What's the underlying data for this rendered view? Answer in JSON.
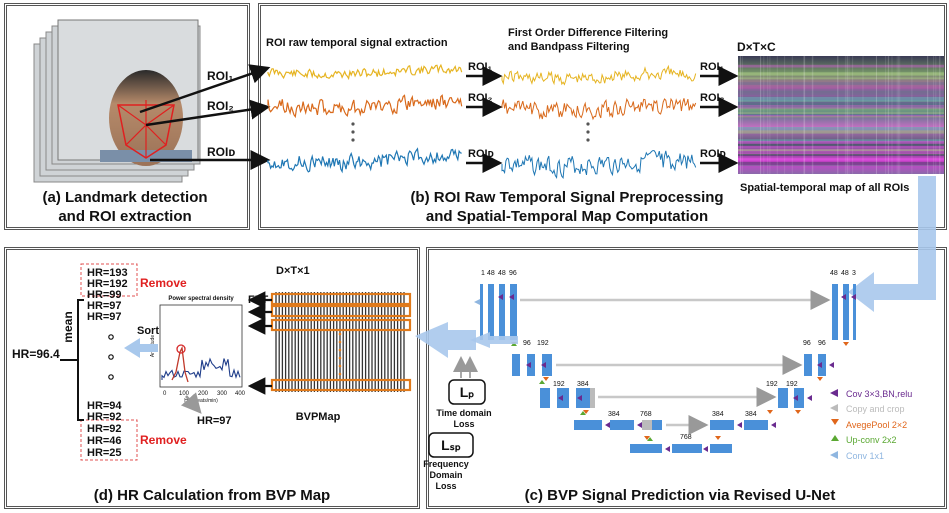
{
  "panel_a": {
    "roi1": "ROI₁",
    "roi2": "ROI₂",
    "roid": "ROIᴅ",
    "caption1": "(a)  Landmark detection",
    "caption2": "and ROI extraction"
  },
  "panel_b": {
    "extract_title": "ROI raw temporal signal extraction",
    "filter_title1": "First Order Difference Filtering",
    "filter_title2": "and Bandpass Filtering",
    "roi1": "ROI₁",
    "roi2": "ROI₂",
    "roid": "ROIᴅ",
    "dtc": "D×T×C",
    "map_caption": "Spatial-temporal map of all ROIs",
    "caption1": "(b) ROI Raw Temporal Signal Preprocessing",
    "caption2": "and Spatial-Temporal Map Computation",
    "colors": {
      "roi1": "#e6b422",
      "roi2": "#d96a1c",
      "roid": "#1f77b4"
    }
  },
  "panel_c": {
    "enc_top": [
      "1",
      "48",
      "48",
      "96"
    ],
    "dec_top": [
      "48",
      "48",
      "3"
    ],
    "l2_left": [
      "96",
      "192"
    ],
    "l2_right": [
      "96",
      "96"
    ],
    "l3_left": [
      "192",
      "384"
    ],
    "l3_right": [
      "192",
      "192"
    ],
    "l4_left": [
      "384",
      "768"
    ],
    "l4_right": [
      "384",
      "384"
    ],
    "bottom": "768",
    "lp": "Lₚ",
    "lp_caption": "Time domain",
    "lp_caption2": "Loss",
    "lsp": "Lₛₚ",
    "lsp_caption1": "Frequency",
    "lsp_caption2": "Domain",
    "lsp_caption3": "Loss",
    "legend": [
      {
        "label": "Cov 3×3,BN,relu",
        "color": "#6a2b8f"
      },
      {
        "label": "Copy and crop",
        "color": "#bbbbbb"
      },
      {
        "label": "AvegePool 2×2",
        "color": "#e0661b"
      },
      {
        "label": "Up-conv 2x2",
        "color": "#5aa832"
      },
      {
        "label": "Conv 1x1",
        "color": "#8fb6e0"
      }
    ],
    "caption": "(c) BVP Signal Prediction via Revised U-Net"
  },
  "panel_d": {
    "hr_top": [
      "HR=193",
      "HR=192",
      "HR=99"
    ],
    "hr_mid_top": [
      "HR=97",
      "HR=97"
    ],
    "hr_mid_bottom": [
      "HR=94",
      "HR=92"
    ],
    "hr_bottom": [
      "HR=92",
      "HR=46",
      "HR=25"
    ],
    "remove": "Remove",
    "mean": "mean",
    "sort": "Sort",
    "hr_result": "HR=96.4",
    "hr_peak": "HR=97",
    "psd_title": "Power spectral density",
    "psd_xlabel": "HR (beats/min)",
    "psd_ylabel": "Amplitude",
    "psd_ticks": [
      "0",
      "100",
      "200",
      "300",
      "400"
    ],
    "fft": "FFT",
    "dt1": "D×T×1",
    "bvpmap": "BVPMap",
    "caption": "(d) HR Calculation from BVP Map"
  }
}
